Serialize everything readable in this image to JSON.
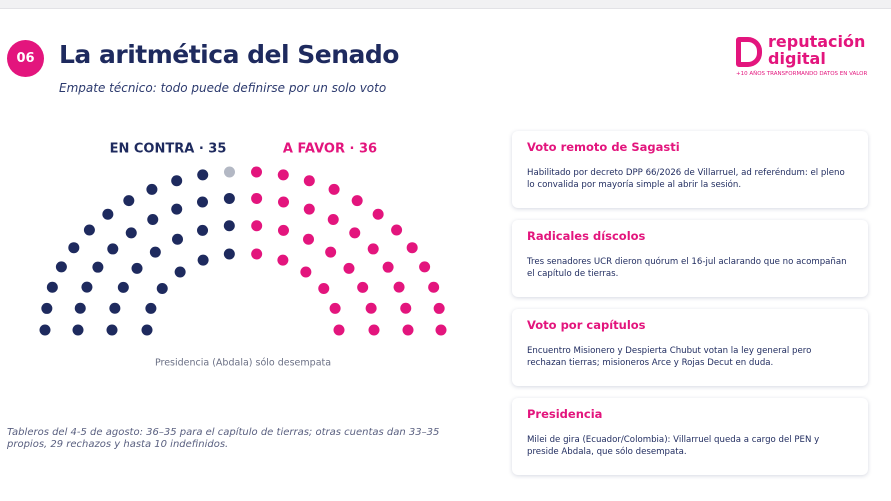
{
  "header": {
    "badge": "06",
    "title": "La aritmética del Senado",
    "subtitle": "Empate técnico: todo puede definirse por un solo voto"
  },
  "logo": {
    "line1": "reputación",
    "line2": "digital",
    "tagline": "+10 AÑOS TRANSFORMANDO DATOS EN VALOR"
  },
  "chart_data": {
    "type": "parliament",
    "series": [
      {
        "name": "EN CONTRA · 35",
        "color": "#1e2a5e",
        "values": [
          35
        ]
      },
      {
        "name": "A FAVOR · 36",
        "color": "#e3157d",
        "values": [
          36
        ]
      }
    ],
    "neutral_seats": 1,
    "neutral_color": "#b3b8c4",
    "caption": "Presidencia (Abdala) sólo desempata"
  },
  "footnote": "Tableros del 4-5 de agosto: 36–35 para el capítulo de tierras; otras cuentas dan 33–35 propios, 29 rechazos y hasta 10 indefinidos.",
  "cards": [
    {
      "title": "Voto remoto de Sagasti",
      "body": "Habilitado por decreto DPP 66/2026 de Villarruel, ad referéndum: el pleno lo convalida por mayoría simple al abrir la sesión."
    },
    {
      "title": "Radicales díscolos",
      "body": "Tres senadores UCR dieron quórum el 16-jul aclarando que no acompañan el capítulo de tierras."
    },
    {
      "title": "Voto por capítulos",
      "body": "Encuentro Misionero y Despierta Chubut votan la ley general pero rechazan tierras; misioneros Arce y Rojas Decut en duda."
    },
    {
      "title": "Presidencia",
      "body": "Milei de gira (Ecuador/Colombia): Villarruel queda a cargo del PEN y preside Abdala, que sólo desempata."
    }
  ]
}
